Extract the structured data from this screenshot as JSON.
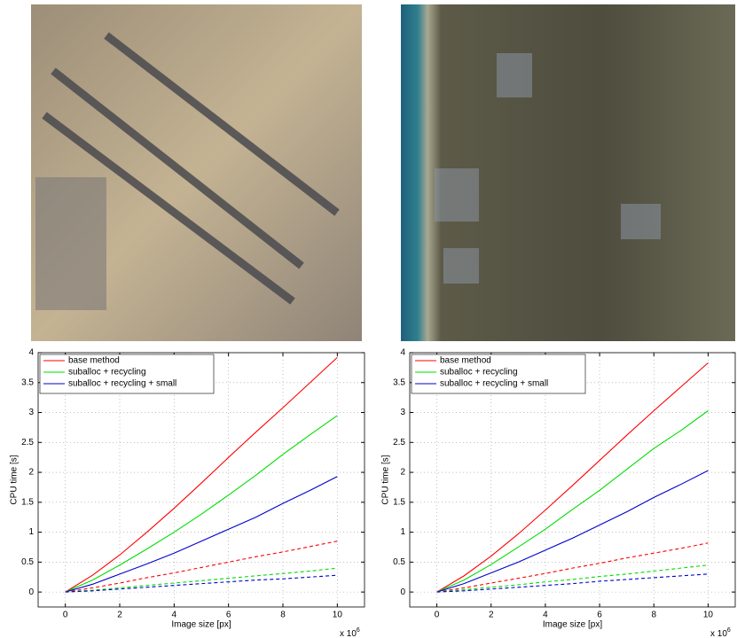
{
  "chart_data": [
    {
      "type": "line",
      "x": [
        0,
        1,
        2,
        3,
        4,
        5,
        6,
        7,
        8,
        9,
        10
      ],
      "series": [
        {
          "name": "base method",
          "color": "#ff0000",
          "dash": false,
          "values": [
            0,
            0.28,
            0.62,
            1.0,
            1.4,
            1.82,
            2.25,
            2.67,
            3.08,
            3.5,
            3.92
          ]
        },
        {
          "name": "suballoc + recycling",
          "color": "#00dd00",
          "dash": false,
          "values": [
            0,
            0.2,
            0.45,
            0.72,
            1.0,
            1.3,
            1.62,
            1.95,
            2.3,
            2.63,
            2.95
          ]
        },
        {
          "name": "suballoc + recycling + small",
          "color": "#0000cc",
          "dash": false,
          "values": [
            0,
            0.13,
            0.3,
            0.47,
            0.65,
            0.85,
            1.05,
            1.25,
            1.48,
            1.7,
            1.93
          ]
        },
        {
          "color": "#ff0000",
          "dash": true,
          "values": [
            0,
            0.07,
            0.15,
            0.24,
            0.32,
            0.41,
            0.5,
            0.59,
            0.67,
            0.76,
            0.85
          ]
        },
        {
          "color": "#00dd00",
          "dash": true,
          "values": [
            0,
            0.03,
            0.07,
            0.11,
            0.15,
            0.19,
            0.23,
            0.27,
            0.31,
            0.35,
            0.4
          ]
        },
        {
          "color": "#0000cc",
          "dash": true,
          "values": [
            0,
            0.02,
            0.05,
            0.08,
            0.11,
            0.14,
            0.17,
            0.2,
            0.22,
            0.25,
            0.28
          ]
        }
      ],
      "xlabel": "Image size [px]",
      "ylabel": "CPU time [s]",
      "x_multiplier": "x 10",
      "x_multiplier_exponent": "6",
      "xlim": [
        -1,
        11
      ],
      "ylim": [
        -0.25,
        4
      ],
      "xticks": [
        0,
        2,
        4,
        6,
        8,
        10
      ],
      "yticks": [
        0,
        0.5,
        1,
        1.5,
        2,
        2.5,
        3,
        3.5,
        4
      ],
      "grid": true,
      "legend": "upper-left"
    },
    {
      "type": "line",
      "x": [
        0,
        1,
        2,
        3,
        4,
        5,
        6,
        7,
        8,
        9,
        10
      ],
      "series": [
        {
          "name": "base method",
          "color": "#ff0000",
          "dash": false,
          "values": [
            0,
            0.27,
            0.6,
            0.97,
            1.37,
            1.78,
            2.2,
            2.62,
            3.03,
            3.43,
            3.83
          ]
        },
        {
          "name": "suballoc + recycling",
          "color": "#00dd00",
          "dash": false,
          "values": [
            0,
            0.2,
            0.46,
            0.75,
            1.05,
            1.38,
            1.7,
            2.05,
            2.4,
            2.7,
            3.03
          ]
        },
        {
          "name": "suballoc + recycling + small",
          "color": "#0000cc",
          "dash": false,
          "values": [
            0,
            0.14,
            0.32,
            0.5,
            0.7,
            0.9,
            1.12,
            1.34,
            1.58,
            1.8,
            2.03
          ]
        },
        {
          "color": "#ff0000",
          "dash": true,
          "values": [
            0,
            0.07,
            0.15,
            0.23,
            0.31,
            0.4,
            0.48,
            0.57,
            0.65,
            0.73,
            0.82
          ]
        },
        {
          "color": "#00dd00",
          "dash": true,
          "values": [
            0,
            0.04,
            0.08,
            0.12,
            0.17,
            0.21,
            0.26,
            0.3,
            0.35,
            0.4,
            0.45
          ]
        },
        {
          "color": "#0000cc",
          "dash": true,
          "values": [
            0,
            0.02,
            0.05,
            0.08,
            0.11,
            0.14,
            0.18,
            0.21,
            0.24,
            0.27,
            0.3
          ]
        }
      ],
      "xlabel": "Image size [px]",
      "ylabel": "CPU time [s]",
      "x_multiplier": "x 10",
      "x_multiplier_exponent": "6",
      "xlim": [
        -1,
        11
      ],
      "ylim": [
        -0.25,
        4
      ],
      "xticks": [
        0,
        2,
        4,
        6,
        8,
        10
      ],
      "yticks": [
        0,
        0.5,
        1,
        1.5,
        2,
        2.5,
        3,
        3.5,
        4
      ],
      "grid": true,
      "legend": "upper-left"
    }
  ]
}
